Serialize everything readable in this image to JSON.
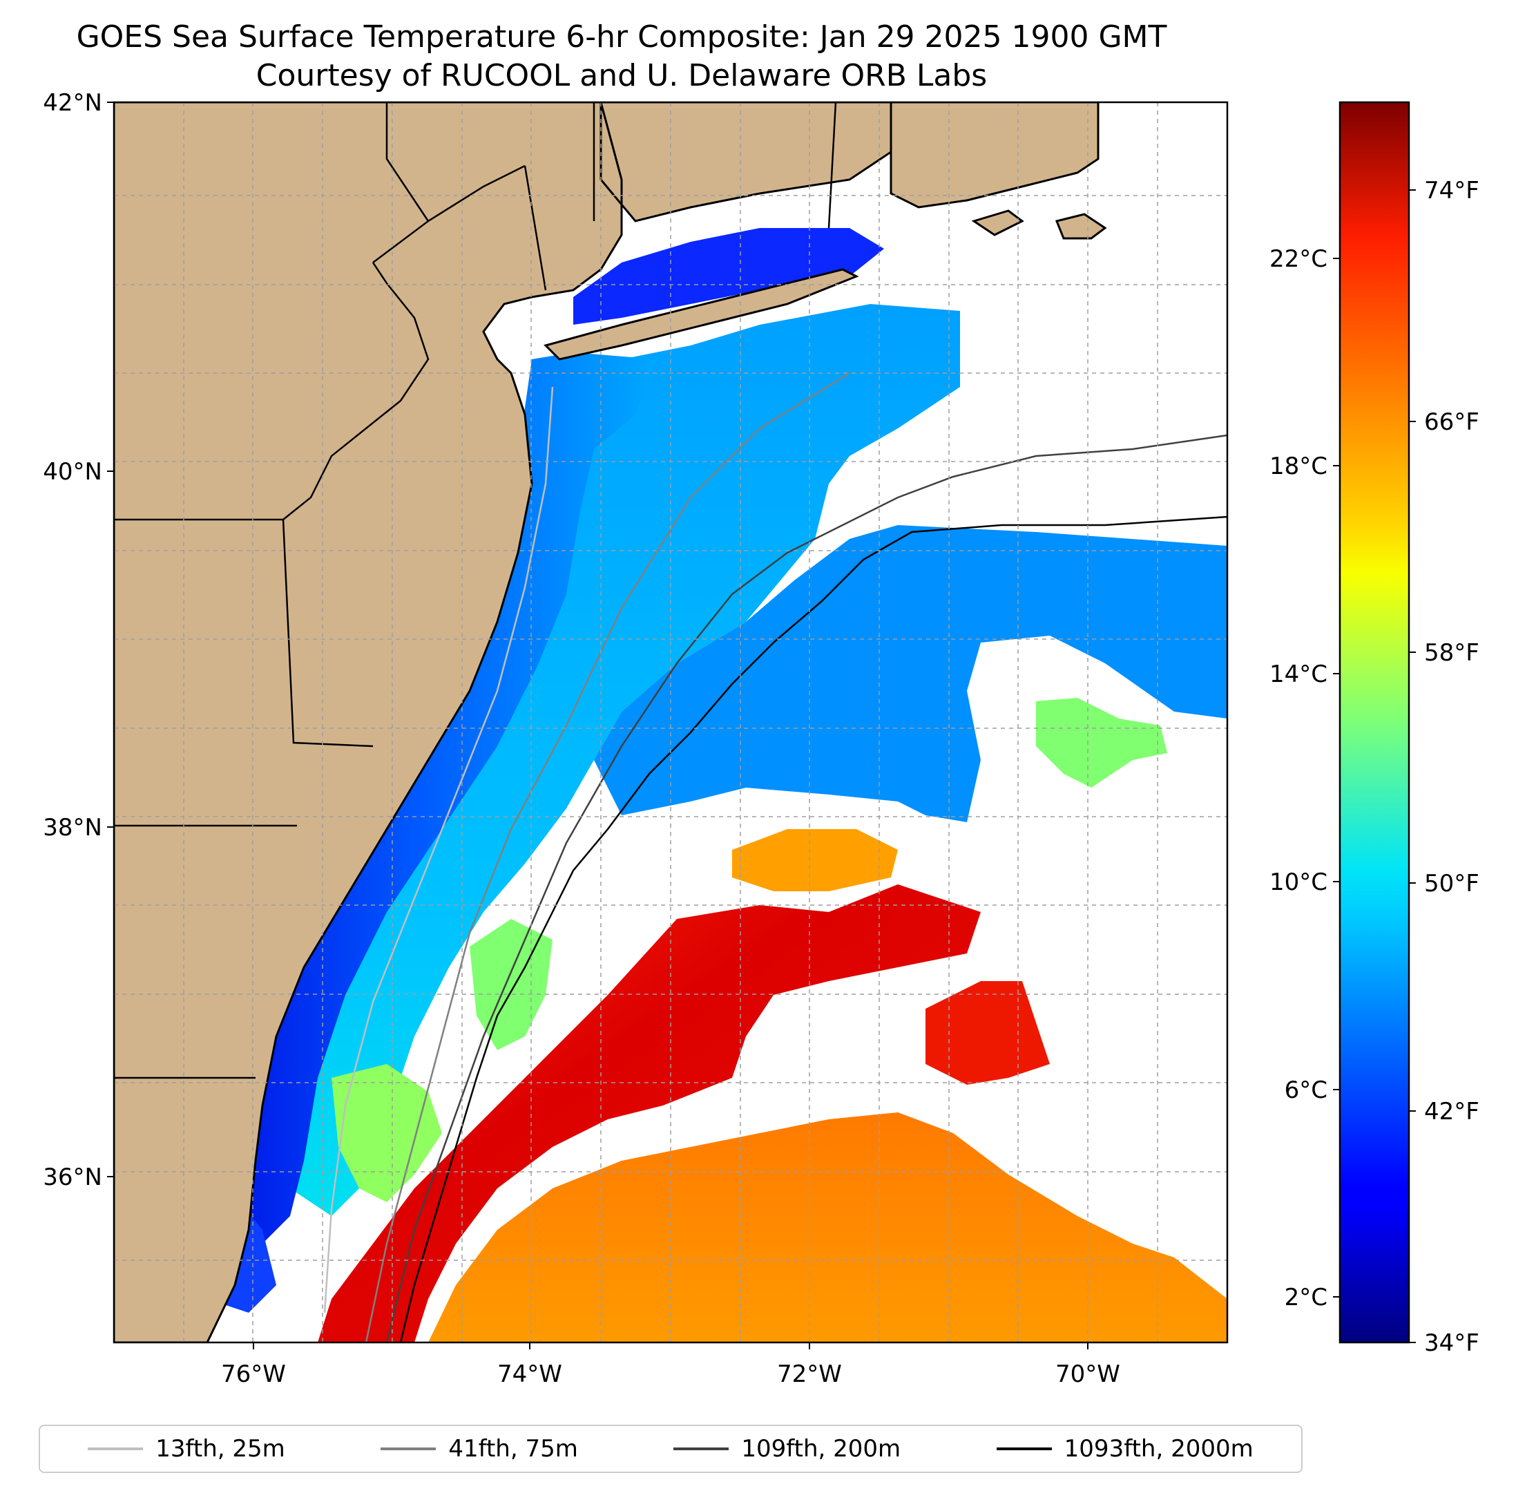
{
  "title": {
    "line1": "GOES Sea Surface Temperature 6-hr Composite: Jan 29 2025 1900 GMT",
    "line2": "Courtesy of RUCOOL and U. Delaware ORB Labs"
  },
  "map": {
    "lon_range": [
      -77,
      -69
    ],
    "lat_range": [
      35,
      42
    ],
    "lat_ticks": [
      "42°N",
      "40°N",
      "38°N",
      "36°N"
    ],
    "lon_ticks": [
      "76°W",
      "74°W",
      "72°W",
      "70°W"
    ],
    "gridlines": true,
    "land_color": "#d2b48c",
    "no_data_color": "#ffffff"
  },
  "colorbar": {
    "colormap": "jet",
    "celsius_ticks": [
      "22°C",
      "18°C",
      "14°C",
      "10°C",
      "6°C",
      "2°C"
    ],
    "fahrenheit_ticks": [
      "74°F",
      "66°F",
      "58°F",
      "50°F",
      "42°F",
      "34°F"
    ]
  },
  "legend": {
    "placement": "bottom",
    "items": [
      {
        "label": "13fth, 25m",
        "color": "#bfbfbf"
      },
      {
        "label": "41fth, 75m",
        "color": "#808080"
      },
      {
        "label": "109fth, 200m",
        "color": "#404040"
      },
      {
        "label": "1093fth, 2000m",
        "color": "#000000"
      }
    ]
  }
}
